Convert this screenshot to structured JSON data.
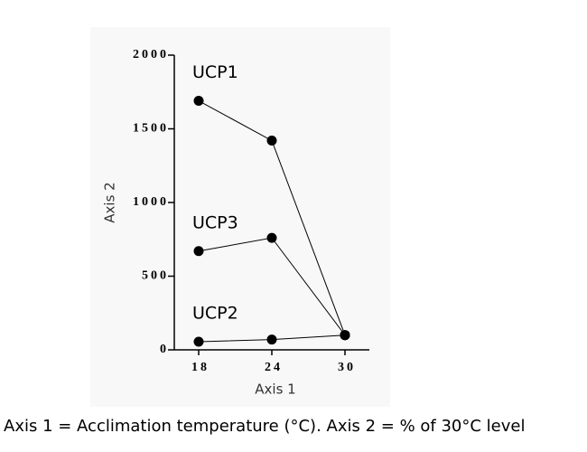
{
  "chart_data": {
    "type": "line",
    "x": [
      18,
      24,
      30
    ],
    "series": [
      {
        "name": "UCP1",
        "color": "#000000",
        "values": [
          1690,
          1420,
          100
        ]
      },
      {
        "name": "UCP3",
        "color": "#000000",
        "values": [
          670,
          760,
          100
        ]
      },
      {
        "name": "UCP2",
        "color": "#000000",
        "values": [
          55,
          70,
          100
        ]
      }
    ],
    "xlim": [
      16,
      32
    ],
    "ylim": [
      0,
      2000
    ],
    "xticks": [
      18,
      24,
      30
    ],
    "yticks": [
      0,
      500,
      1000,
      1500,
      2000
    ],
    "x_label": "Axis 1",
    "y_label": "Axis 2",
    "caption": "Axis 1 = Acclimation temperature (°C). Axis 2 = % of 30°C level"
  }
}
